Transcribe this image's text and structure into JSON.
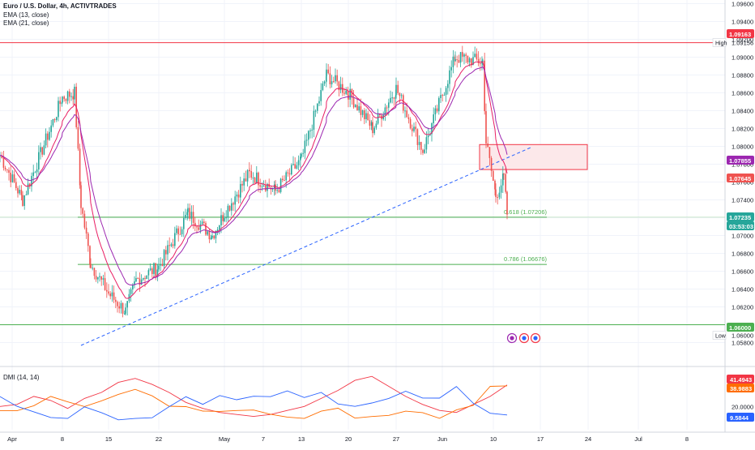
{
  "header": {
    "title": "Euro / U.S. Dollar, 4h, ACTIVTRADES",
    "indicators": [
      "EMA (13, close)",
      "EMA (21, close)"
    ]
  },
  "dmi_panel": {
    "title": "DMI (14, 14)"
  },
  "colors": {
    "up": "#26a69a",
    "down": "#ef5350",
    "ema13": "#e91e63",
    "ema21": "#9c27b0",
    "resistance": "#f23645",
    "support": "#4caf50",
    "trendline": "#2962ff",
    "zone_fill": "#fce8ea",
    "dmi_plus": "#2962ff",
    "dmi_minus": "#ff6d00",
    "adx": "#f23645"
  },
  "chart_data": [
    {
      "type": "candlestick",
      "title": "Euro / U.S. Dollar, 4h, ACTIVTRADES",
      "x_tick_labels": [
        "Apr",
        "8",
        "15",
        "22",
        "May",
        "7",
        "13",
        "20",
        "27",
        "Jun",
        "10",
        "17",
        "24",
        "Jul",
        "8"
      ],
      "y_tick_labels": [
        "1.09600",
        "1.09400",
        "1.09200",
        "1.09000",
        "1.08800",
        "1.08600",
        "1.08400",
        "1.08200",
        "1.08000",
        "1.07800",
        "1.07600",
        "1.07400",
        "1.07200",
        "1.07000",
        "1.06800",
        "1.06600",
        "1.06400",
        "1.06200",
        "1.06000",
        "1.05800"
      ],
      "ylim": [
        1.058,
        1.0965
      ],
      "grid": true,
      "series_approx_close": [
        {
          "date": "Apr 1",
          "value": 1.079
        },
        {
          "date": "Apr 5",
          "value": 1.074
        },
        {
          "date": "Apr 8",
          "value": 1.0855
        },
        {
          "date": "Apr 10",
          "value": 1.086
        },
        {
          "date": "Apr 11",
          "value": 1.0735
        },
        {
          "date": "Apr 12",
          "value": 1.0668
        },
        {
          "date": "Apr 15",
          "value": 1.0635
        },
        {
          "date": "Apr 16",
          "value": 1.0615
        },
        {
          "date": "Apr 19",
          "value": 1.065
        },
        {
          "date": "Apr 22",
          "value": 1.0665
        },
        {
          "date": "Apr 25",
          "value": 1.0725
        },
        {
          "date": "Apr 30",
          "value": 1.07
        },
        {
          "date": "May 2",
          "value": 1.0725
        },
        {
          "date": "May 6",
          "value": 1.077
        },
        {
          "date": "May 9",
          "value": 1.075
        },
        {
          "date": "May 13",
          "value": 1.0785
        },
        {
          "date": "May 15",
          "value": 1.088
        },
        {
          "date": "May 20",
          "value": 1.086
        },
        {
          "date": "May 23",
          "value": 1.082
        },
        {
          "date": "May 27",
          "value": 1.0865
        },
        {
          "date": "May 29",
          "value": 1.0795
        },
        {
          "date": "Jun 3",
          "value": 1.09
        },
        {
          "date": "Jun 7",
          "value": 1.0895
        },
        {
          "date": "Jun 7 late",
          "value": 1.0805
        },
        {
          "date": "Jun 10",
          "value": 1.0745
        },
        {
          "date": "Jun 11",
          "value": 1.0765
        },
        {
          "date": "Jun 12",
          "value": 1.07235
        }
      ],
      "price_labels": [
        {
          "text": "1.09163",
          "kind": "resistance"
        },
        {
          "text": "1.07855",
          "kind": "ema21"
        },
        {
          "text": "1.07645",
          "kind": "ema13"
        },
        {
          "text": "1.07235",
          "kind": "last"
        },
        {
          "text": "03:53:03",
          "kind": "countdown"
        },
        {
          "text": "1.06000",
          "kind": "support"
        }
      ],
      "high_label": {
        "tag": "High",
        "value": "1.09156"
      },
      "low_label": {
        "tag": "Low",
        "value": "1.06000"
      },
      "fib_levels": [
        {
          "text": "0.618 (1.07206)",
          "price": 1.07206
        },
        {
          "text": "0.786 (1.06676)",
          "price": 1.06676
        }
      ],
      "horizontal_lines": [
        {
          "price": 1.09163,
          "kind": "resistance"
        },
        {
          "price": 1.06,
          "kind": "support"
        }
      ],
      "zone": {
        "from_price": 1.0774,
        "to_price": 1.0802
      },
      "trendline": {
        "style": "dashed",
        "start": {
          "date": "Apr 11",
          "price": 1.0562
        },
        "end": {
          "date": "Jun 11",
          "price": 1.08
        }
      }
    },
    {
      "type": "line",
      "title": "DMI (14, 14)",
      "y_tick_labels": [
        "20.0000"
      ],
      "value_labels": [
        "41.4943",
        "38.9883",
        "9.5844"
      ],
      "series": [
        {
          "label": "41.4943",
          "last_value": 41.4943,
          "approx": [
            20,
            22,
            30,
            26,
            18,
            28,
            34,
            44,
            48,
            42,
            34,
            24,
            18,
            14,
            12,
            10,
            12,
            16,
            20,
            28,
            36,
            46,
            50,
            40,
            30,
            22,
            16,
            14,
            22,
            30,
            41.5
          ]
        },
        {
          "label": "38.9883",
          "last_value": 38.9883,
          "approx": [
            14,
            16,
            22,
            28,
            26,
            20,
            24,
            34,
            36,
            30,
            22,
            18,
            16,
            16,
            14,
            18,
            12,
            8,
            10,
            14,
            18,
            10,
            8,
            12,
            16,
            12,
            10,
            16,
            20,
            42,
            39
          ]
        },
        {
          "label": "9.5844",
          "last_value": 9.5844,
          "approx": [
            28,
            22,
            14,
            8,
            10,
            18,
            14,
            8,
            6,
            10,
            20,
            28,
            24,
            30,
            26,
            32,
            28,
            36,
            30,
            32,
            24,
            20,
            22,
            30,
            34,
            28,
            30,
            38,
            24,
            14,
            9.6
          ]
        }
      ]
    }
  ]
}
